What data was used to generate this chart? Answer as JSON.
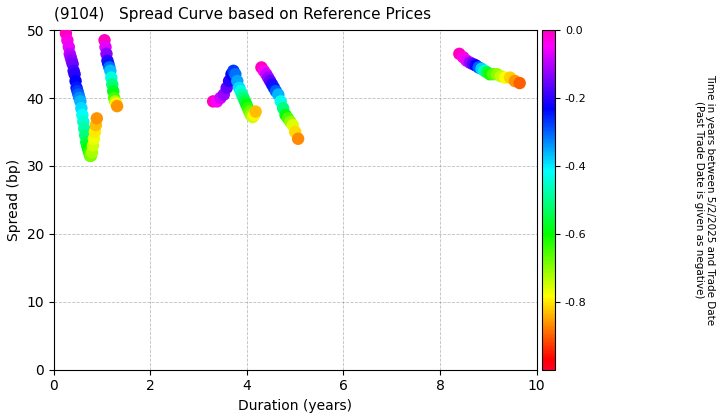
{
  "title": "(9104)   Spread Curve based on Reference Prices",
  "xlabel": "Duration (years)",
  "ylabel": "Spread (bp)",
  "xlim": [
    0,
    10
  ],
  "ylim": [
    0,
    50
  ],
  "xticks": [
    0,
    2,
    4,
    6,
    8,
    10
  ],
  "yticks": [
    0,
    10,
    20,
    30,
    40,
    50
  ],
  "colorbar_label_line1": "Time in years between 5/2/2025 and Trade Date",
  "colorbar_label_line2": "(Past Trade Date is given as negative)",
  "cbar_ticks": [
    0.0,
    -0.2,
    -0.4,
    -0.6,
    -0.8
  ],
  "cluster1_duration": [
    0.25,
    0.28,
    0.31,
    0.33,
    0.35,
    0.37,
    0.39,
    0.41,
    0.43,
    0.45,
    0.47,
    0.49,
    0.51,
    0.53,
    0.55,
    0.57,
    0.59,
    0.61,
    0.63,
    0.65,
    0.67,
    0.69,
    0.71,
    0.73,
    0.75,
    0.77,
    0.79,
    0.81,
    0.83,
    0.85,
    0.87,
    0.89
  ],
  "cluster1_spread": [
    49.5,
    48.5,
    47.5,
    46.5,
    46.0,
    45.5,
    45.0,
    44.0,
    43.5,
    42.5,
    41.5,
    41.0,
    40.5,
    40.0,
    39.5,
    38.5,
    37.5,
    36.5,
    35.5,
    34.5,
    33.5,
    33.0,
    32.5,
    32.0,
    31.5,
    31.5,
    32.0,
    33.0,
    34.0,
    35.0,
    36.0,
    37.0
  ],
  "cluster1_cval": [
    0.0,
    -0.03,
    -0.06,
    -0.09,
    -0.11,
    -0.13,
    -0.15,
    -0.18,
    -0.2,
    -0.23,
    -0.25,
    -0.27,
    -0.3,
    -0.33,
    -0.36,
    -0.39,
    -0.42,
    -0.45,
    -0.48,
    -0.51,
    -0.54,
    -0.57,
    -0.6,
    -0.63,
    -0.66,
    -0.69,
    -0.72,
    -0.75,
    -0.77,
    -0.8,
    -0.83,
    -0.86
  ],
  "cluster2_duration": [
    1.05,
    1.07,
    1.09,
    1.11,
    1.13,
    1.15,
    1.17,
    1.19,
    1.21,
    1.23,
    1.25,
    1.27,
    1.29,
    1.31
  ],
  "cluster2_spread": [
    48.5,
    47.5,
    46.5,
    45.5,
    45.0,
    44.5,
    44.0,
    43.0,
    42.0,
    41.0,
    40.0,
    39.5,
    39.2,
    38.8
  ],
  "cluster2_cval": [
    0.0,
    -0.07,
    -0.13,
    -0.19,
    -0.25,
    -0.31,
    -0.37,
    -0.44,
    -0.51,
    -0.58,
    -0.65,
    -0.72,
    -0.79,
    -0.86
  ],
  "cluster3_duration": [
    3.3,
    3.38,
    3.45,
    3.52,
    3.58,
    3.63,
    3.68,
    3.72,
    3.76,
    3.8,
    3.84,
    3.87,
    3.9,
    3.93,
    3.96,
    3.99,
    4.02,
    4.05,
    4.08,
    4.12,
    4.15,
    4.18
  ],
  "cluster3_spread": [
    39.5,
    39.5,
    40.0,
    40.5,
    41.5,
    42.5,
    43.5,
    44.0,
    43.5,
    42.5,
    41.5,
    41.0,
    40.5,
    40.0,
    39.5,
    39.0,
    38.5,
    38.0,
    37.5,
    37.2,
    37.5,
    38.0
  ],
  "cluster3_cval": [
    0.0,
    -0.04,
    -0.08,
    -0.12,
    -0.16,
    -0.2,
    -0.23,
    -0.27,
    -0.31,
    -0.35,
    -0.39,
    -0.43,
    -0.47,
    -0.51,
    -0.55,
    -0.59,
    -0.63,
    -0.67,
    -0.71,
    -0.75,
    -0.79,
    -0.83
  ],
  "cluster4_duration": [
    4.3,
    4.35,
    4.4,
    4.44,
    4.48,
    4.52,
    4.56,
    4.6,
    4.65,
    4.7,
    4.75,
    4.8,
    4.85,
    4.9,
    4.95,
    5.0,
    5.06
  ],
  "cluster4_spread": [
    44.5,
    44.0,
    43.5,
    43.0,
    42.5,
    42.0,
    41.5,
    41.0,
    40.5,
    39.5,
    38.5,
    37.5,
    37.0,
    36.5,
    36.0,
    35.0,
    34.0
  ],
  "cluster4_cval": [
    0.0,
    -0.04,
    -0.08,
    -0.12,
    -0.16,
    -0.2,
    -0.25,
    -0.3,
    -0.36,
    -0.43,
    -0.51,
    -0.59,
    -0.65,
    -0.7,
    -0.76,
    -0.81,
    -0.87
  ],
  "cluster5_duration": [
    8.4,
    8.48,
    8.55,
    8.62,
    8.68,
    8.74,
    8.8,
    8.86,
    8.92,
    8.97,
    9.03,
    9.1,
    9.18,
    9.26,
    9.35,
    9.45,
    9.55,
    9.65
  ],
  "cluster5_spread": [
    46.5,
    46.0,
    45.5,
    45.2,
    45.0,
    44.8,
    44.5,
    44.3,
    44.0,
    43.8,
    43.5,
    43.5,
    43.5,
    43.2,
    43.0,
    43.0,
    42.5,
    42.2
  ],
  "cluster5_cval": [
    0.0,
    -0.03,
    -0.07,
    -0.12,
    -0.17,
    -0.23,
    -0.3,
    -0.38,
    -0.46,
    -0.54,
    -0.61,
    -0.66,
    -0.7,
    -0.74,
    -0.78,
    -0.82,
    -0.86,
    -0.9
  ]
}
